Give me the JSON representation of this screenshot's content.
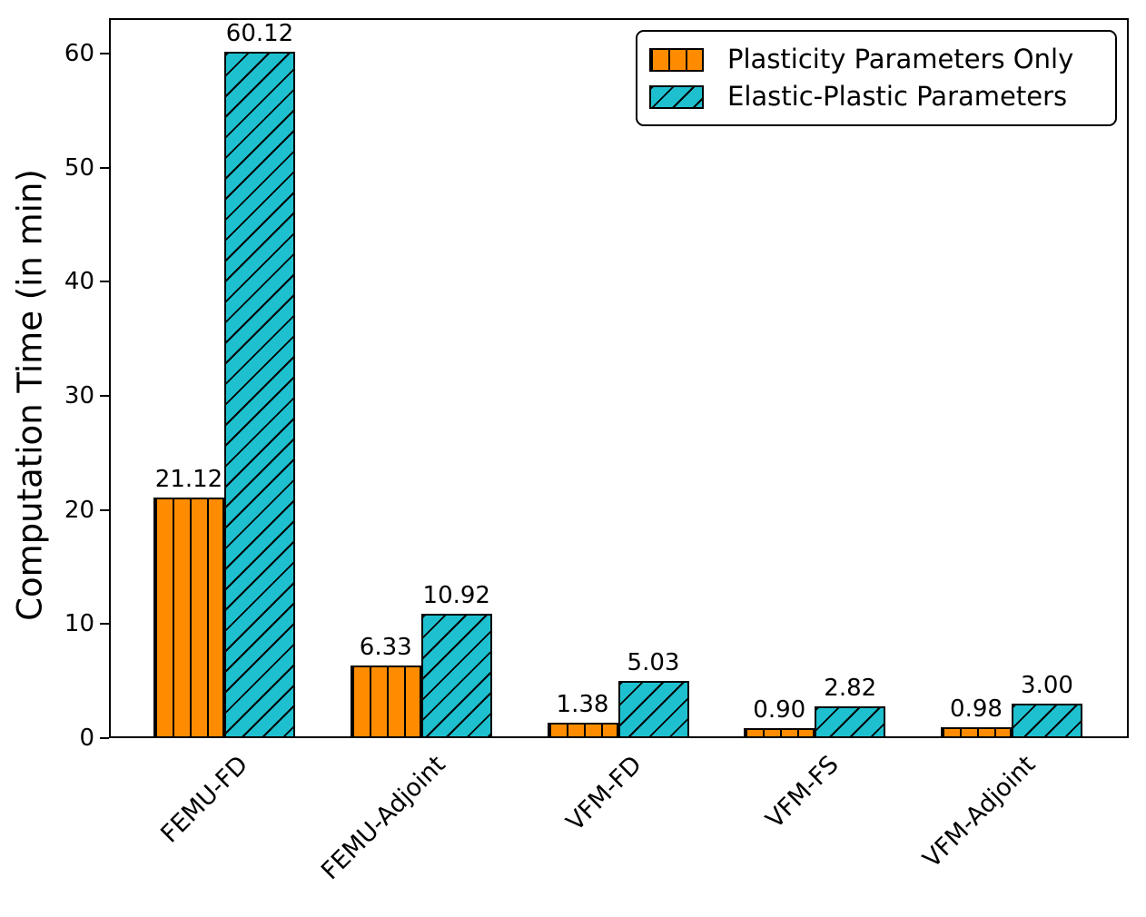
{
  "figure": {
    "background": "#ffffff",
    "axis_color": "#000000"
  },
  "chart_data": {
    "type": "bar",
    "title": "",
    "xlabel": "",
    "ylabel": "Computation Time (in min)",
    "categories": [
      "FEMU-FD",
      "FEMU-Adjoint",
      "VFM-FD",
      "VFM-FS",
      "VFM-Adjoint"
    ],
    "series": [
      {
        "name": "Plasticity Parameters Only",
        "color": "#ff8c00",
        "hatch": "vertical",
        "values": [
          21.12,
          6.33,
          1.38,
          0.9,
          0.98
        ],
        "value_labels": [
          "21.12",
          "6.33",
          "1.38",
          "0.90",
          "0.98"
        ]
      },
      {
        "name": "Elastic-Plastic Parameters",
        "color": "#1ec0cf",
        "hatch": "diagonal",
        "values": [
          60.12,
          10.92,
          5.03,
          2.82,
          3.0
        ],
        "value_labels": [
          "60.12",
          "10.92",
          "5.03",
          "2.82",
          "3.00"
        ]
      }
    ],
    "yticks": [
      0,
      10,
      20,
      30,
      40,
      50,
      60
    ],
    "ytick_labels": [
      "0",
      "10",
      "20",
      "30",
      "40",
      "50",
      "60"
    ],
    "ylim": [
      0,
      63.1
    ],
    "grid": false,
    "legend_position": "upper right",
    "bar_edge_color": "#000000"
  }
}
